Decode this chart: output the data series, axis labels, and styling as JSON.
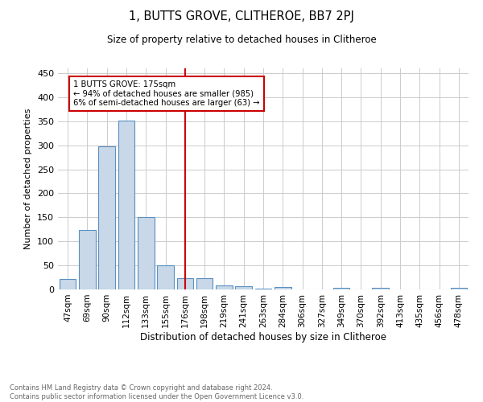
{
  "title1": "1, BUTTS GROVE, CLITHEROE, BB7 2PJ",
  "title2": "Size of property relative to detached houses in Clitheroe",
  "xlabel": "Distribution of detached houses by size in Clitheroe",
  "ylabel": "Number of detached properties",
  "bar_labels": [
    "47sqm",
    "69sqm",
    "90sqm",
    "112sqm",
    "133sqm",
    "155sqm",
    "176sqm",
    "198sqm",
    "219sqm",
    "241sqm",
    "263sqm",
    "284sqm",
    "306sqm",
    "327sqm",
    "349sqm",
    "370sqm",
    "392sqm",
    "413sqm",
    "435sqm",
    "456sqm",
    "478sqm"
  ],
  "bar_values": [
    22,
    123,
    298,
    352,
    151,
    50,
    24,
    24,
    9,
    6,
    1,
    5,
    0,
    0,
    4,
    0,
    3,
    0,
    0,
    0,
    4
  ],
  "bar_color": "#c8d8e8",
  "bar_edgecolor": "#5a8fc0",
  "vline_x": 6,
  "vline_color": "#cc0000",
  "annotation_text": "1 BUTTS GROVE: 175sqm\n← 94% of detached houses are smaller (985)\n6% of semi-detached houses are larger (63) →",
  "annotation_box_color": "#ffffff",
  "annotation_box_edgecolor": "#cc0000",
  "ylim": [
    0,
    460
  ],
  "yticks": [
    0,
    50,
    100,
    150,
    200,
    250,
    300,
    350,
    400,
    450
  ],
  "footnote": "Contains HM Land Registry data © Crown copyright and database right 2024.\nContains public sector information licensed under the Open Government Licence v3.0.",
  "bg_color": "#ffffff",
  "grid_color": "#cccccc"
}
